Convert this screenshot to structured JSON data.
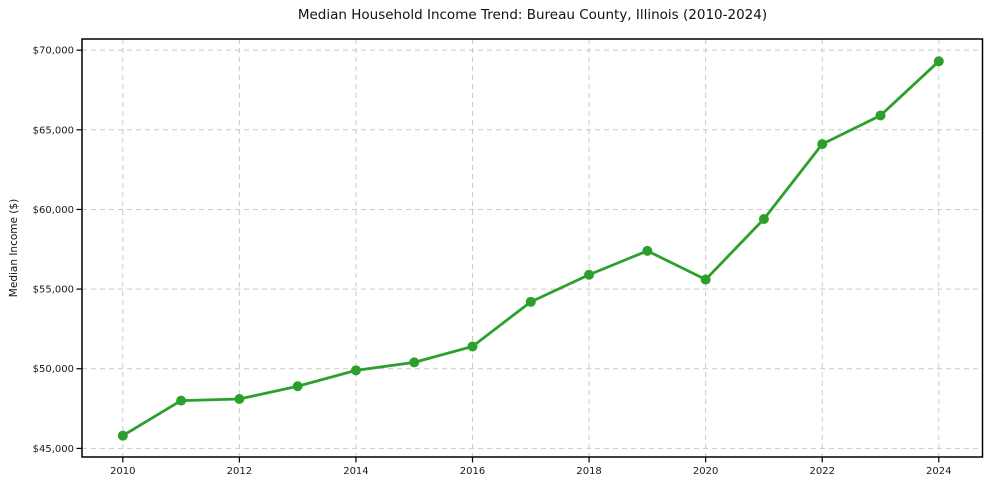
{
  "page": {
    "background": "#ffffff"
  },
  "chart_data": {
    "type": "line",
    "title": "Median Household Income Trend: Bureau County, Illinois (2010-2024)",
    "xlabel": "",
    "ylabel": "Median Income ($)",
    "x": [
      2010,
      2011,
      2012,
      2013,
      2014,
      2015,
      2016,
      2017,
      2018,
      2019,
      2020,
      2021,
      2022,
      2023,
      2024
    ],
    "series": [
      {
        "name": "Median Household Income",
        "values": [
          45800,
          48000,
          48100,
          48900,
          49900,
          50400,
          51400,
          54200,
          55900,
          57400,
          55600,
          59400,
          64100,
          65900,
          69300
        ],
        "color": "#2ca02c",
        "marker": "circle",
        "line_width": 2.8,
        "marker_radius": 5
      }
    ],
    "xticks": {
      "values": [
        2010,
        2012,
        2014,
        2016,
        2018,
        2020,
        2022,
        2024
      ],
      "labels": [
        "2010",
        "2012",
        "2014",
        "2016",
        "2018",
        "2020",
        "2022",
        "2024"
      ]
    },
    "yticks": {
      "values": [
        45000,
        50000,
        55000,
        60000,
        65000,
        70000
      ],
      "labels": [
        "$45,000",
        "$50,000",
        "$55,000",
        "$60,000",
        "$65,000",
        "$70,000"
      ]
    },
    "xlim": [
      2009.3,
      2024.75
    ],
    "ylim": [
      44460,
      70700
    ],
    "grid": {
      "show": true,
      "style": "dashed",
      "color": "#c9c9c9"
    },
    "legend": {
      "show": false
    },
    "axis_color": "#000000",
    "tick_label_color": "#1a1a1a"
  }
}
